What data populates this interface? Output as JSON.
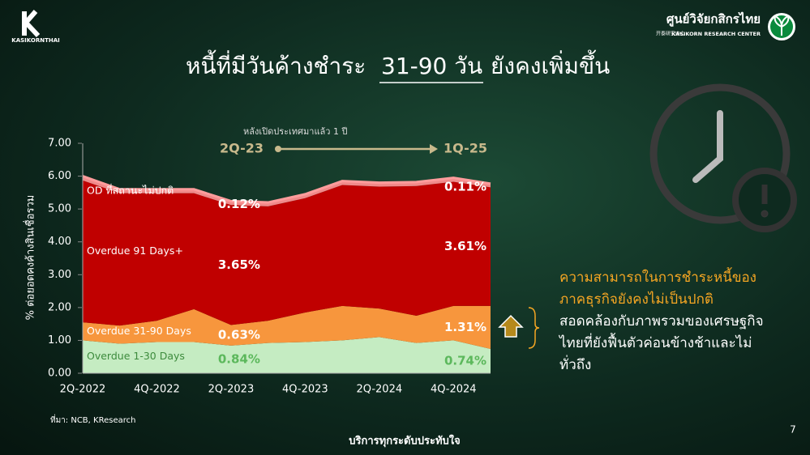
{
  "header": {
    "title_before": "หนี้ที่มีวันค้างชำระ",
    "title_highlight": "31-90 วัน",
    "title_after": "ยังคงเพิ่มขึ้น",
    "logo_left": "KASIKORNTHAI",
    "logo_right_thai": "ศูนย์วิจัยกสิกรไทย",
    "logo_right_chinese": "开泰研究中心",
    "logo_right_english": "KASIKORN RESEARCH CENTER"
  },
  "chart_data": {
    "type": "stacked-area",
    "y_label": "% ต่อยอดคงค้างสินเชื่อรวม",
    "categories": [
      "2Q-2022",
      null,
      "4Q-2022",
      null,
      "2Q-2023",
      null,
      "4Q-2023",
      null,
      "2Q-2024",
      null,
      "4Q-2024",
      null
    ],
    "series": [
      {
        "name": "Overdue 1-30 Days",
        "color": "#c5ecc2",
        "values": [
          1.0,
          0.9,
          0.95,
          0.95,
          0.84,
          0.92,
          0.95,
          1.0,
          1.1,
          0.92,
          1.0,
          0.74
        ],
        "value_labels": [
          null,
          null,
          null,
          null,
          "0.84%",
          null,
          null,
          null,
          null,
          null,
          null,
          "0.74%"
        ]
      },
      {
        "name": "Overdue 31-90 Days",
        "color": "#f7963d",
        "values": [
          0.55,
          0.55,
          0.65,
          1.0,
          0.63,
          0.68,
          0.9,
          1.05,
          0.87,
          0.83,
          1.05,
          1.31
        ],
        "value_labels": [
          null,
          null,
          null,
          null,
          "0.63%",
          null,
          null,
          null,
          null,
          null,
          null,
          "1.31%"
        ]
      },
      {
        "name": "Overdue 91 Days+",
        "color": "#c00000",
        "values": [
          4.32,
          4.03,
          3.88,
          3.53,
          3.65,
          3.48,
          3.48,
          3.68,
          3.71,
          3.95,
          3.78,
          3.61
        ],
        "value_labels": [
          null,
          null,
          null,
          null,
          "3.65%",
          null,
          null,
          null,
          null,
          null,
          null,
          "3.61%"
        ]
      },
      {
        "name": "OD ที่สถานะไม่ปกติ",
        "color": "#f08a8a",
        "values": [
          0.13,
          0.12,
          0.12,
          0.12,
          0.12,
          0.12,
          0.12,
          0.12,
          0.12,
          0.12,
          0.12,
          0.11
        ],
        "value_labels": [
          null,
          null,
          null,
          null,
          "0.12%",
          null,
          null,
          null,
          null,
          null,
          null,
          "0.11%"
        ]
      }
    ],
    "ylim": [
      0,
      7
    ],
    "yticks": [
      {
        "value": 0,
        "label": "0.00"
      },
      {
        "value": 1,
        "label": "1.00"
      },
      {
        "value": 2,
        "label": "2.00"
      },
      {
        "value": 3,
        "label": "3.00"
      },
      {
        "value": 4,
        "label": "4.00"
      },
      {
        "value": 5,
        "label": "5.00"
      },
      {
        "value": 6,
        "label": "6.00"
      },
      {
        "value": 7,
        "label": "7.00"
      }
    ],
    "annotation": {
      "note": "หลังเปิดประเทศมาแล้ว 1 ปี",
      "from": "2Q-23",
      "to": "1Q-25"
    },
    "source": "ที่มา: NCB, KResearch"
  },
  "side_text": {
    "highlight": "ความสามารถในการชำระหนี้ของภาคธุรกิจยังคงไม่เป็นปกติ",
    "rest": "สอดคล้องกับภาพรวมของเศรษฐกิจไทยที่ยังฟื้นตัวค่อนข้างช้าและไม่ทั่วถึง"
  },
  "footer": {
    "slogan": "บริการทุกระดับประทับใจ",
    "page": "7"
  }
}
